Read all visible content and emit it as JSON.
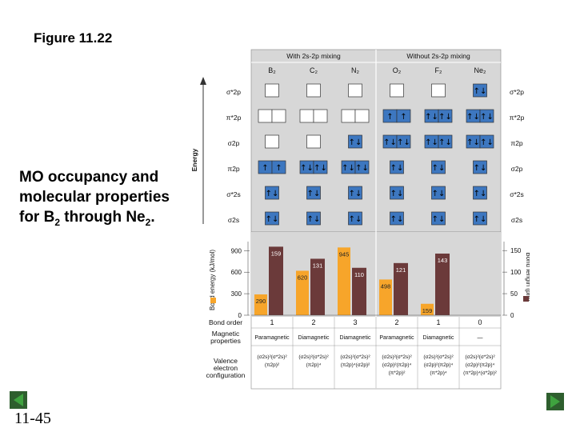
{
  "slide": {
    "title": "Figure 11.22",
    "caption_line1": "MO occupancy and",
    "caption_line2": "molecular properties",
    "caption_line3_main": "for B",
    "caption_line3_sub": "2",
    "caption_line3_mid": " through Ne",
    "caption_line3_sub2": "2",
    "caption_line3_end": ".",
    "page_number": "11-45"
  },
  "navigation": {
    "prev_icon": "triangle-left-icon",
    "next_icon": "triangle-right-icon",
    "color": "#2e7d32"
  },
  "diagram": {
    "header_left": "With 2s-2p mixing",
    "header_right": "Without 2s-2p mixing",
    "molecules": [
      "B₂",
      "C₂",
      "N₂",
      "O₂",
      "F₂",
      "Ne₂"
    ],
    "energy_label": "Energy",
    "orbitals_left": [
      "σ*2p",
      "π*2p",
      "σ2p",
      "π2p",
      "σ*2s",
      "σ2s"
    ],
    "orbitals_right": [
      "σ*2p",
      "π*2p",
      "π2p",
      "σ2p",
      "σ*2s",
      "σ2s"
    ],
    "occupancy": [
      [
        [
          ""
        ],
        [
          "",
          ""
        ],
        [
          ""
        ],
        [
          "↑",
          "↑"
        ],
        [
          "↑↓"
        ],
        [
          "↑↓"
        ]
      ],
      [
        [
          ""
        ],
        [
          "",
          ""
        ],
        [
          ""
        ],
        [
          "↑↓",
          "↑↓"
        ],
        [
          "↑↓"
        ],
        [
          "↑↓"
        ]
      ],
      [
        [
          ""
        ],
        [
          "",
          ""
        ],
        [
          "↑↓"
        ],
        [
          "↑↓",
          "↑↓"
        ],
        [
          "↑↓"
        ],
        [
          "↑↓"
        ]
      ],
      [
        [
          ""
        ],
        [
          "↑",
          "↑"
        ],
        [
          "↑↓",
          "↑↓"
        ],
        [
          "↑↓"
        ],
        [
          "↑↓"
        ],
        [
          "↑↓"
        ]
      ],
      [
        [
          ""
        ],
        [
          "↑↓",
          "↑↓"
        ],
        [
          "↑↓",
          "↑↓"
        ],
        [
          "↑↓"
        ],
        [
          "↑↓"
        ],
        [
          "↑↓"
        ]
      ],
      [
        [
          "↑↓"
        ],
        [
          "↑↓",
          "↑↓"
        ],
        [
          "↑↓",
          "↑↓"
        ],
        [
          "↑↓"
        ],
        [
          "↑↓"
        ],
        [
          "↑↓"
        ]
      ]
    ],
    "colors": {
      "filled_box": "#3d77c0",
      "empty_box": "#ffffff",
      "panel_bg": "#d7d7d7",
      "energy_bar": "#f7a52a",
      "length_bar": "#6b3a3a"
    }
  },
  "chart_data": {
    "type": "bar",
    "categories": [
      "B₂",
      "C₂",
      "N₂",
      "O₂",
      "F₂",
      "Ne₂"
    ],
    "series": [
      {
        "name": "Bond energy (kJ/mol)",
        "values": [
          290,
          620,
          945,
          498,
          159,
          null
        ],
        "labels": [
          "290",
          "620",
          "945",
          "498",
          "159",
          ""
        ]
      },
      {
        "name": "Bond length (pm)",
        "values": [
          159,
          131,
          110,
          121,
          143,
          null
        ],
        "labels": [
          "159",
          "131",
          "110",
          "121",
          "143",
          ""
        ]
      }
    ],
    "left_axis": {
      "label": "Bond energy (kJ/mol)",
      "ticks": [
        "900",
        "600",
        "300",
        "0"
      ],
      "ylim": [
        0,
        1100
      ]
    },
    "right_axis": {
      "label": "Bond length (pm)",
      "ticks": [
        "150",
        "100",
        "50",
        "0"
      ],
      "ylim": [
        0,
        183
      ]
    }
  },
  "properties": {
    "bond_order_label": "Bond order",
    "bond_orders": [
      "1",
      "2",
      "3",
      "2",
      "1",
      "0"
    ],
    "magnetic_label_1": "Magnetic",
    "magnetic_label_2": "properties",
    "magnetic": [
      "Paramagnetic",
      "Diamagnetic",
      "Diamagnetic",
      "Paramagnetic",
      "Diamagnetic",
      "—"
    ],
    "valence_label_1": "Valence",
    "valence_label_2": "electron",
    "valence_label_3": "configuration",
    "configs": [
      [
        "(σ2s)²(σ*2s)²",
        "(π2p)²"
      ],
      [
        "(σ2s)²(σ*2s)²",
        "(π2p)⁴"
      ],
      [
        "(σ2s)²(σ*2s)²",
        "(π2p)⁴(σ2p)²"
      ],
      [
        "(σ2s)²(σ*2s)²",
        "(σ2p)²(π2p)⁴",
        "(π*2p)²"
      ],
      [
        "(σ2s)²(σ*2s)²",
        "(σ2p)²(π2p)⁴",
        "(π*2p)⁴"
      ],
      [
        "(σ2s)²(σ*2s)²",
        "(σ2p)²(π2p)⁴",
        "(π*2p)⁴(σ*2p)²"
      ]
    ]
  }
}
